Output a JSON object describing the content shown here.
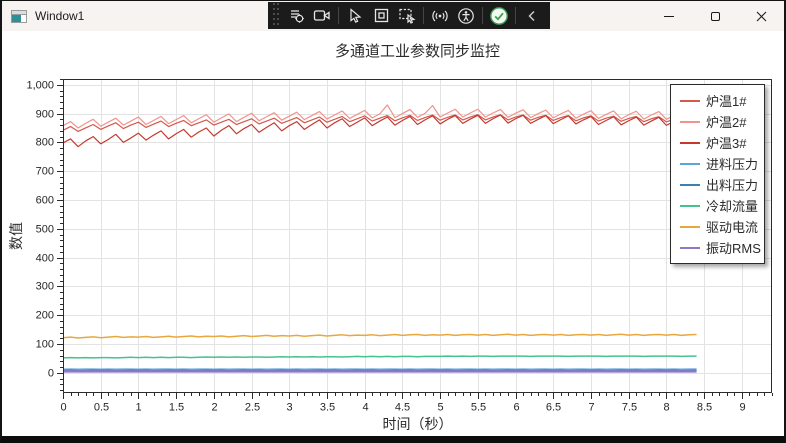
{
  "window": {
    "title": "Window1"
  },
  "toolbar": {
    "icons": [
      {
        "name": "grip-dots"
      },
      {
        "name": "capture-settings"
      },
      {
        "name": "video-camera"
      },
      {
        "name": "pointer-select"
      },
      {
        "name": "window-capture"
      },
      {
        "name": "region-capture"
      },
      {
        "name": "broadcast"
      },
      {
        "name": "accessibility"
      },
      {
        "name": "confirm-check"
      },
      {
        "name": "collapse-chevron"
      }
    ]
  },
  "colors": {
    "titlebar_bg": "#f7f3f1",
    "toolbar_bg": "#1b1b1b",
    "check_green": "#3f9e4d",
    "grid": "#e3e3e3",
    "axis": "#2b2b2b"
  },
  "chart_data": {
    "type": "line",
    "title": "多通道工业参数同步监控",
    "xlabel": "时间（秒）",
    "ylabel": "数值",
    "xlim": [
      0,
      9.4
    ],
    "ylim": [
      -70,
      1020
    ],
    "x_ticks": {
      "start": 0,
      "end": 9,
      "step": 0.5
    },
    "y_ticks": {
      "start": 0,
      "end": 1000,
      "step": 100
    },
    "x_minor_step": 0.1,
    "y_minor_step": 20,
    "grid": true,
    "legend_position": "top-right",
    "x_start": 0,
    "x_step": 0.1,
    "series": [
      {
        "name": "炉温1#",
        "color": "#d4584e",
        "width": 1.2,
        "values": [
          842,
          855,
          838,
          850,
          862,
          845,
          857,
          868,
          848,
          860,
          870,
          852,
          863,
          874,
          855,
          866,
          876,
          858,
          868,
          878,
          860,
          870,
          880,
          862,
          872,
          882,
          864,
          874,
          884,
          866,
          876,
          886,
          868,
          878,
          888,
          870,
          880,
          890,
          872,
          882,
          892,
          874,
          884,
          893,
          875,
          885,
          894,
          876,
          886,
          895,
          877,
          887,
          895,
          878,
          888,
          896,
          878,
          888,
          896,
          878,
          888,
          895,
          877,
          887,
          894,
          876,
          886,
          893,
          875,
          885,
          892,
          874,
          884,
          891,
          873,
          883,
          890,
          872,
          882,
          889,
          871,
          881,
          888,
          870,
          880
        ]
      },
      {
        "name": "炉温2#",
        "color": "#f0938c",
        "width": 1.2,
        "values": [
          858,
          872,
          850,
          866,
          880,
          856,
          870,
          884,
          860,
          874,
          888,
          862,
          876,
          890,
          865,
          879,
          893,
          868,
          882,
          896,
          870,
          885,
          899,
          872,
          887,
          901,
          875,
          889,
          903,
          877,
          891,
          905,
          879,
          893,
          907,
          881,
          895,
          909,
          883,
          897,
          911,
          885,
          899,
          930,
          886,
          900,
          914,
          887,
          901,
          928,
          888,
          902,
          915,
          888,
          902,
          915,
          888,
          902,
          914,
          887,
          901,
          913,
          886,
          900,
          912,
          885,
          899,
          911,
          884,
          898,
          910,
          883,
          897,
          909,
          882,
          896,
          908,
          881,
          895,
          907,
          880,
          894,
          906,
          879,
          893
        ]
      },
      {
        "name": "炉温3#",
        "color": "#c43a2e",
        "width": 1.2,
        "values": [
          798,
          812,
          785,
          805,
          820,
          795,
          810,
          828,
          800,
          815,
          832,
          808,
          825,
          840,
          812,
          830,
          845,
          818,
          836,
          850,
          822,
          842,
          858,
          830,
          848,
          862,
          835,
          852,
          868,
          840,
          858,
          872,
          845,
          862,
          878,
          850,
          868,
          882,
          855,
          870,
          885,
          858,
          874,
          888,
          860,
          876,
          890,
          862,
          878,
          892,
          864,
          880,
          893,
          866,
          881,
          894,
          866,
          882,
          895,
          867,
          882,
          894,
          866,
          880,
          893,
          865,
          879,
          892,
          864,
          878,
          890,
          862,
          876,
          889,
          861,
          875,
          888,
          860,
          874,
          887,
          859,
          873,
          886,
          858,
          872
        ]
      },
      {
        "name": "进料压力",
        "color": "#5aa7d6",
        "width": 1.2,
        "values": [
          13,
          13.4,
          12.8,
          13.2,
          13.5,
          13,
          13.4,
          12.8,
          13.2,
          13.5,
          13,
          13.4,
          12.8,
          13.2,
          13.5,
          13,
          13.4,
          12.8,
          13.2,
          13.5,
          13,
          13.4,
          12.8,
          13.2,
          13.5,
          13,
          13.4,
          12.8,
          13.2,
          13.5,
          13,
          13.4,
          12.8,
          13.2,
          13.5,
          13,
          13.4,
          12.8,
          13.2,
          13.5,
          13,
          13.4,
          12.8,
          13.2,
          13.5,
          13,
          13.4,
          12.8,
          13.2,
          13.5,
          13,
          13.4,
          12.8,
          13.2,
          13.5,
          13,
          13.4,
          12.8,
          13.2,
          13.5,
          13,
          13.4,
          12.8,
          13.2,
          13.5,
          13,
          13.4,
          12.8,
          13.2,
          13.5,
          13,
          13.4,
          12.8,
          13.2,
          13.5,
          13,
          13.4,
          12.8,
          13.2,
          13.5,
          13,
          13.4,
          12.8,
          13.2,
          13.5
        ]
      },
      {
        "name": "出料压力",
        "color": "#3d7fae",
        "width": 1.2,
        "values": [
          9,
          9.3,
          8.7,
          9.2,
          9.4,
          9,
          9.3,
          8.7,
          9.2,
          9.4,
          9,
          9.3,
          8.7,
          9.2,
          9.4,
          9,
          9.3,
          8.7,
          9.2,
          9.4,
          9,
          9.3,
          8.7,
          9.2,
          9.4,
          9,
          9.3,
          8.7,
          9.2,
          9.4,
          9,
          9.3,
          8.7,
          9.2,
          9.4,
          9,
          9.3,
          8.7,
          9.2,
          9.4,
          9,
          9.3,
          8.7,
          9.2,
          9.4,
          9,
          9.3,
          8.7,
          9.2,
          9.4,
          9,
          9.3,
          8.7,
          9.2,
          9.4,
          9,
          9.3,
          8.7,
          9.2,
          9.4,
          9,
          9.3,
          8.7,
          9.2,
          9.4,
          9,
          9.3,
          8.7,
          9.2,
          9.4,
          9,
          9.3,
          8.7,
          9.2,
          9.4,
          9,
          9.3,
          8.7,
          9.2,
          9.4,
          9,
          9.3,
          8.7,
          9.2,
          9.4
        ]
      },
      {
        "name": "冷却流量",
        "color": "#46c28e",
        "width": 1.5,
        "values": [
          52,
          53,
          52,
          53,
          52,
          53,
          53,
          52,
          53,
          54,
          53,
          54,
          53,
          54,
          53,
          54,
          54,
          53,
          54,
          55,
          54,
          55,
          54,
          55,
          54,
          55,
          55,
          54,
          55,
          56,
          55,
          56,
          55,
          56,
          55,
          56,
          56,
          55,
          56,
          57,
          56,
          57,
          56,
          57,
          56,
          57,
          57,
          56,
          57,
          57,
          57,
          58,
          57,
          58,
          57,
          58,
          58,
          57,
          58,
          58,
          58,
          58,
          57,
          58,
          58,
          58,
          58,
          57,
          58,
          58,
          58,
          58,
          57,
          58,
          58,
          58,
          58,
          57,
          58,
          58,
          58,
          58,
          57,
          58,
          58
        ]
      },
      {
        "name": "驱动电流",
        "color": "#e8a83e",
        "width": 1.5,
        "values": [
          122,
          124,
          121,
          123,
          125,
          122,
          124,
          126,
          123,
          125,
          124,
          126,
          123,
          125,
          127,
          124,
          126,
          128,
          125,
          127,
          126,
          128,
          125,
          127,
          129,
          126,
          128,
          130,
          127,
          129,
          128,
          130,
          127,
          129,
          131,
          128,
          130,
          132,
          129,
          131,
          130,
          132,
          129,
          131,
          133,
          130,
          132,
          133,
          130,
          132,
          131,
          133,
          130,
          132,
          133,
          131,
          133,
          130,
          132,
          134,
          131,
          133,
          130,
          132,
          133,
          131,
          133,
          130,
          132,
          133,
          131,
          133,
          130,
          132,
          134,
          131,
          133,
          130,
          132,
          133,
          131,
          133,
          130,
          132,
          133
        ]
      },
      {
        "name": "振动RMS",
        "color": "#8f78c8",
        "width": 2.4,
        "values": [
          5,
          5.2,
          4.8,
          5.1,
          5,
          5,
          5.2,
          4.8,
          5.1,
          5,
          5,
          5.2,
          4.8,
          5.1,
          5,
          5,
          5.2,
          4.8,
          5.1,
          5,
          5,
          5.2,
          4.8,
          5.1,
          5,
          5,
          5.2,
          4.8,
          5.1,
          5,
          5,
          5.2,
          4.8,
          5.1,
          5,
          5,
          5.2,
          4.8,
          5.1,
          5,
          5,
          5.2,
          4.8,
          5.1,
          5,
          5,
          5.2,
          4.8,
          5.1,
          5,
          5,
          5.2,
          4.8,
          5.1,
          5,
          5,
          5.2,
          4.8,
          5.1,
          5,
          5,
          5.2,
          4.8,
          5.1,
          5,
          5,
          5.2,
          4.8,
          5.1,
          5,
          5,
          5.2,
          4.8,
          5.1,
          5,
          5,
          5.2,
          4.8,
          5.1,
          5,
          5,
          5.2,
          4.8,
          5.1,
          5
        ]
      }
    ]
  }
}
